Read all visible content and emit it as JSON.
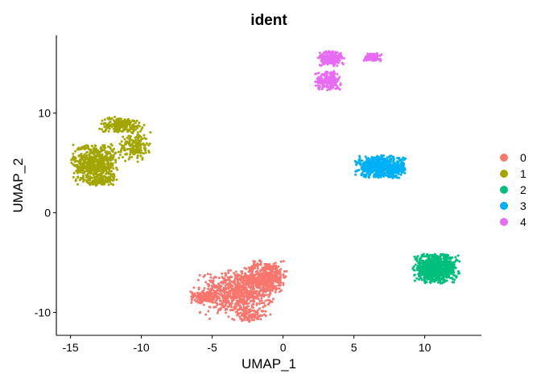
{
  "chart_data": {
    "type": "scatter",
    "title": "ident",
    "xlabel": "UMAP_1",
    "ylabel": "UMAP_2",
    "xlim": [
      -16,
      14
    ],
    "ylim": [
      -12.3,
      17.8
    ],
    "xticks": [
      -15,
      -10,
      -5,
      0,
      5,
      10
    ],
    "yticks": [
      -10,
      0,
      10
    ],
    "xtick_labels": [
      "-15",
      "-10",
      "-5",
      "0",
      "5",
      "10"
    ],
    "ytick_labels": [
      "-10",
      "0",
      "10"
    ],
    "grid": false,
    "legend": "right",
    "point_size": 1.5,
    "series": [
      {
        "name": "0",
        "color": "#F8766D",
        "approx_points": 1400,
        "centroid": [
          -3,
          -7.5
        ],
        "blobs": [
          {
            "center": [
              -3.2,
              -8.0
            ],
            "spread": [
              1.7,
              1.4
            ],
            "weight": 0.55
          },
          {
            "center": [
              -1.2,
              -6.4
            ],
            "spread": [
              1.0,
              1.0
            ],
            "weight": 0.3
          },
          {
            "center": [
              -5.6,
              -8.4
            ],
            "spread": [
              0.6,
              0.4
            ],
            "weight": 0.08
          },
          {
            "center": [
              -2.4,
              -10.3
            ],
            "spread": [
              0.8,
              0.4
            ],
            "weight": 0.07
          }
        ]
      },
      {
        "name": "1",
        "color": "#A3A500",
        "approx_points": 1100,
        "centroid": [
          -12.5,
          6
        ],
        "blobs": [
          {
            "center": [
              -13.3,
              5.0
            ],
            "spread": [
              1.0,
              1.3
            ],
            "weight": 0.55
          },
          {
            "center": [
              -11.4,
              8.8
            ],
            "spread": [
              1.0,
              0.5
            ],
            "weight": 0.2
          },
          {
            "center": [
              -10.5,
              6.6
            ],
            "spread": [
              0.7,
              0.9
            ],
            "weight": 0.15
          },
          {
            "center": [
              -12.8,
              3.2
            ],
            "spread": [
              0.6,
              0.3
            ],
            "weight": 0.1
          }
        ]
      },
      {
        "name": "2",
        "color": "#00BF7D",
        "approx_points": 800,
        "centroid": [
          10.7,
          -5.8
        ],
        "blobs": [
          {
            "center": [
              10.8,
              -5.6
            ],
            "spread": [
              1.0,
              0.9
            ],
            "weight": 1.0
          }
        ]
      },
      {
        "name": "3",
        "color": "#00B0F6",
        "approx_points": 700,
        "centroid": [
          6.8,
          4.7
        ],
        "blobs": [
          {
            "center": [
              6.9,
              4.6
            ],
            "spread": [
              1.1,
              0.7
            ],
            "weight": 1.0
          }
        ]
      },
      {
        "name": "4",
        "color": "#E76BF3",
        "approx_points": 500,
        "centroid": [
          4,
          14.5
        ],
        "blobs": [
          {
            "center": [
              3.4,
              15.5
            ],
            "spread": [
              0.6,
              0.5
            ],
            "weight": 0.4
          },
          {
            "center": [
              3.2,
              13.3
            ],
            "spread": [
              0.6,
              0.6
            ],
            "weight": 0.4
          },
          {
            "center": [
              6.3,
              15.6
            ],
            "spread": [
              0.4,
              0.25
            ],
            "weight": 0.2
          }
        ]
      }
    ]
  }
}
